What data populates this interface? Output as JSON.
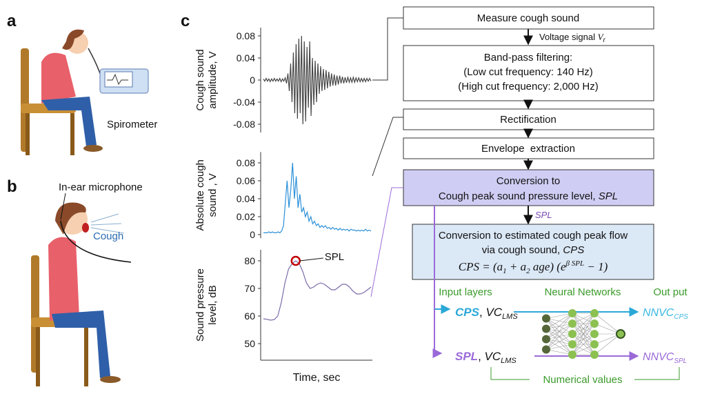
{
  "panels": {
    "a": "a",
    "b": "b",
    "c": "c"
  },
  "labels": {
    "spirometer": "Spirometer",
    "in_ear": "In-ear microphone",
    "cough": "Cough"
  },
  "chart_data": [
    {
      "type": "line",
      "ylabel": [
        "Cough sound",
        "amplitude, V"
      ],
      "color": "#444444",
      "ylim": [
        -0.095,
        0.095
      ],
      "yticks": [
        0.08,
        0.04,
        0,
        -0.04,
        -0.08
      ],
      "values": [
        0.002,
        -0.002,
        0.003,
        -0.002,
        0.002,
        -0.003,
        0.002,
        -0.002,
        0.003,
        -0.002,
        0.002,
        -0.002,
        0.003,
        -0.003,
        0.002,
        -0.002,
        0.004,
        -0.006,
        0.012,
        -0.02,
        0.03,
        -0.04,
        0.05,
        -0.06,
        0.065,
        -0.07,
        0.075,
        -0.06,
        0.08,
        -0.08,
        0.07,
        -0.075,
        0.06,
        -0.05,
        0.07,
        -0.065,
        0.04,
        -0.045,
        0.035,
        -0.04,
        0.03,
        -0.025,
        0.025,
        -0.02,
        0.02,
        -0.018,
        0.018,
        -0.015,
        0.015,
        -0.012,
        0.012,
        -0.01,
        0.01,
        -0.01,
        0.008,
        -0.008,
        0.008,
        -0.006,
        0.006,
        -0.006,
        0.005,
        -0.005,
        0.005,
        -0.004,
        0.004,
        -0.004,
        0.005,
        -0.004,
        0.004,
        -0.003,
        0.004,
        -0.003,
        0.003,
        -0.003,
        0.003,
        -0.003,
        0.003,
        -0.002,
        0.003,
        -0.002
      ]
    },
    {
      "type": "line",
      "ylabel": [
        "Absolute cough",
        "sound , V"
      ],
      "color": "#2a8fd8",
      "ylim": [
        -0.004,
        0.092
      ],
      "yticks": [
        0.08,
        0.06,
        0.04,
        0.02,
        0
      ],
      "values": [
        0.002,
        0.002,
        0.002,
        0.003,
        0.002,
        0.003,
        0.002,
        0.002,
        0.003,
        0.002,
        0.004,
        0.01,
        0.035,
        0.06,
        0.03,
        0.05,
        0.08,
        0.04,
        0.065,
        0.03,
        0.045,
        0.025,
        0.03,
        0.02,
        0.025,
        0.015,
        0.02,
        0.012,
        0.015,
        0.01,
        0.012,
        0.008,
        0.01,
        0.008,
        0.01,
        0.007,
        0.008,
        0.006,
        0.008,
        0.006,
        0.007,
        0.005,
        0.007,
        0.005,
        0.006,
        0.005,
        0.006,
        0.004,
        0.006,
        0.005,
        0.005,
        0.004,
        0.005,
        0.004,
        0.005,
        0.004,
        0.006,
        0.004,
        0.005,
        0.004
      ]
    },
    {
      "type": "line",
      "ylabel": [
        "Sound pressure",
        "level, dB"
      ],
      "xlabel": "Time, sec",
      "annotation": "SPL",
      "color": "#7a6aa8",
      "ylim": [
        44,
        84
      ],
      "yticks": [
        80,
        70,
        60,
        50
      ],
      "values": [
        59,
        58.8,
        58.5,
        58.7,
        60,
        65,
        72,
        77,
        79,
        80,
        79,
        76,
        72,
        70,
        70.5,
        71.5,
        72,
        71.5,
        70.5,
        69.5,
        69.5,
        70.5,
        71.5,
        71.5,
        70.5,
        69,
        68,
        68,
        68.5,
        69.5,
        70.5
      ]
    }
  ],
  "flow": {
    "measure": "Measure cough sound",
    "voltage": {
      "text": "Voltage signal",
      "symbol": "V",
      "sub": "r"
    },
    "bandpass": [
      "Band-pass filtering:",
      "(Low cut frequency: 140 Hz)",
      "(High cut frequency: 2,000 Hz)"
    ],
    "rectification": "Rectification",
    "envelope": "Envelope  extraction",
    "conversion_spl": {
      "line1": "Conversion to",
      "line2": "Cough peak sound pressure level,",
      "symbol": "SPL"
    },
    "spl_arrow": "SPL",
    "conversion_cps": {
      "line1": "Conversion to estimated cough peak flow",
      "line2": "via cough sound,",
      "symbol": "CPS",
      "formula": {
        "lhs": "CPS = (a",
        "s1": "1",
        "mid": " + a",
        "s2": "2",
        "age": " age) (e",
        "exp": "β SPL",
        "end": " − 1)"
      }
    },
    "nn": {
      "input": "Input layers",
      "networks": "Neural Networks",
      "output": "Out put",
      "cps_in": {
        "name": "CPS",
        "sep": ",",
        "vc": "VC",
        "sub": "LMS"
      },
      "spl_in": {
        "name": "SPL",
        "sep": ",",
        "vc": "VC",
        "sub": "LMS"
      },
      "cps_out": {
        "name": "NNVC",
        "sub": "CPS"
      },
      "spl_out": {
        "name": "NNVC",
        "sub": "SPL"
      },
      "numerical": "Numerical values"
    }
  }
}
